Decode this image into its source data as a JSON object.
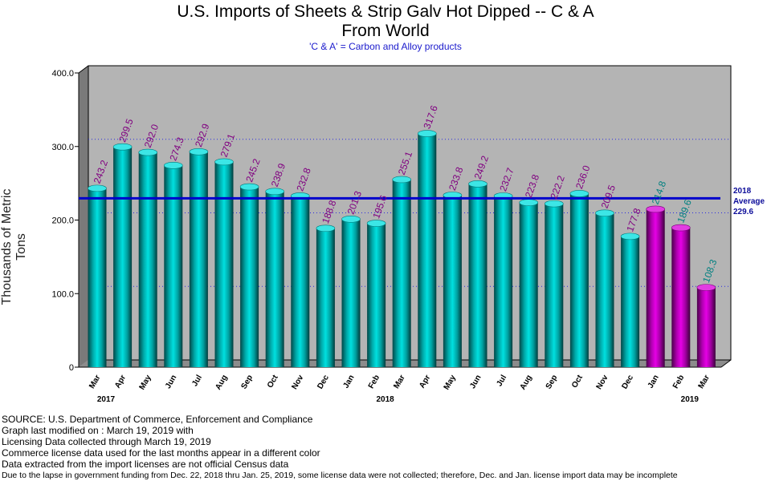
{
  "chart_data": {
    "type": "bar",
    "title_line1": "U.S. Imports of Sheets & Strip Galv Hot Dipped -- C & A",
    "title_line2": "From World",
    "subtitle": "'C & A' = Carbon and Alloy products",
    "ylabel": "Thousands of Metric Tons",
    "ylim": [
      0,
      400
    ],
    "yticks": [
      "0",
      "100.0",
      "200.0",
      "300.0",
      "400.0"
    ],
    "categories": [
      "Mar",
      "Apr",
      "May",
      "Jun",
      "Jul",
      "Aug",
      "Sep",
      "Oct",
      "Nov",
      "Dec",
      "Jan",
      "Feb",
      "Mar",
      "Apr",
      "May",
      "Jun",
      "Jul",
      "Aug",
      "Sep",
      "Oct",
      "Nov",
      "Dec",
      "Jan",
      "Feb",
      "Mar"
    ],
    "values": [
      243.2,
      299.5,
      292.0,
      274.3,
      292.9,
      279.1,
      245.2,
      238.9,
      232.8,
      188.8,
      201.3,
      195.6,
      255.1,
      317.6,
      233.8,
      249.2,
      232.7,
      223.8,
      222.2,
      236.0,
      209.5,
      177.8,
      214.8,
      189.6,
      108.3
    ],
    "value_labels": [
      "243.2",
      "299.5",
      "292.0",
      "274.3",
      "292.9",
      "279.1",
      "245.2",
      "238.9",
      "232.8",
      "188.8",
      "201.3",
      "195.6",
      "255.1",
      "317.6",
      "233.8",
      "249.2",
      "232.7",
      "223.8",
      "222.2",
      "236.0",
      "209.5",
      "177.8",
      "214.8",
      "189.6",
      "108.3"
    ],
    "license_data_from_index": 22,
    "years": [
      {
        "label": "2017",
        "index": 0
      },
      {
        "label": "2018",
        "index": 11
      },
      {
        "label": "2019",
        "index": 23
      }
    ],
    "average": {
      "value": 229.6,
      "line1": "2018",
      "line2": "Average",
      "line3": "229.6"
    },
    "colors": {
      "census_bar": "#00c8c8",
      "license_bar": "#cc00cc",
      "census_label": "#800080",
      "license_label": "#008080",
      "average_line": "#0000cc",
      "plot_background": "#b4b4b4"
    },
    "grid": "dotted-horizontal"
  },
  "notes": [
    "SOURCE: U.S. Department of Commerce, Enforcement and Compliance",
    "Graph last modified on : March 19, 2019     with",
    "Licensing Data collected through March 19, 2019",
    "Commerce license data used for the last months appear in a different color",
    "Data extracted from the import licenses are not official Census data",
    "Due to the lapse in government funding from Dec. 22, 2018 thru Jan. 25, 2019, some license data were not collected; therefore, Dec. and Jan. license import data may be incomplete"
  ]
}
